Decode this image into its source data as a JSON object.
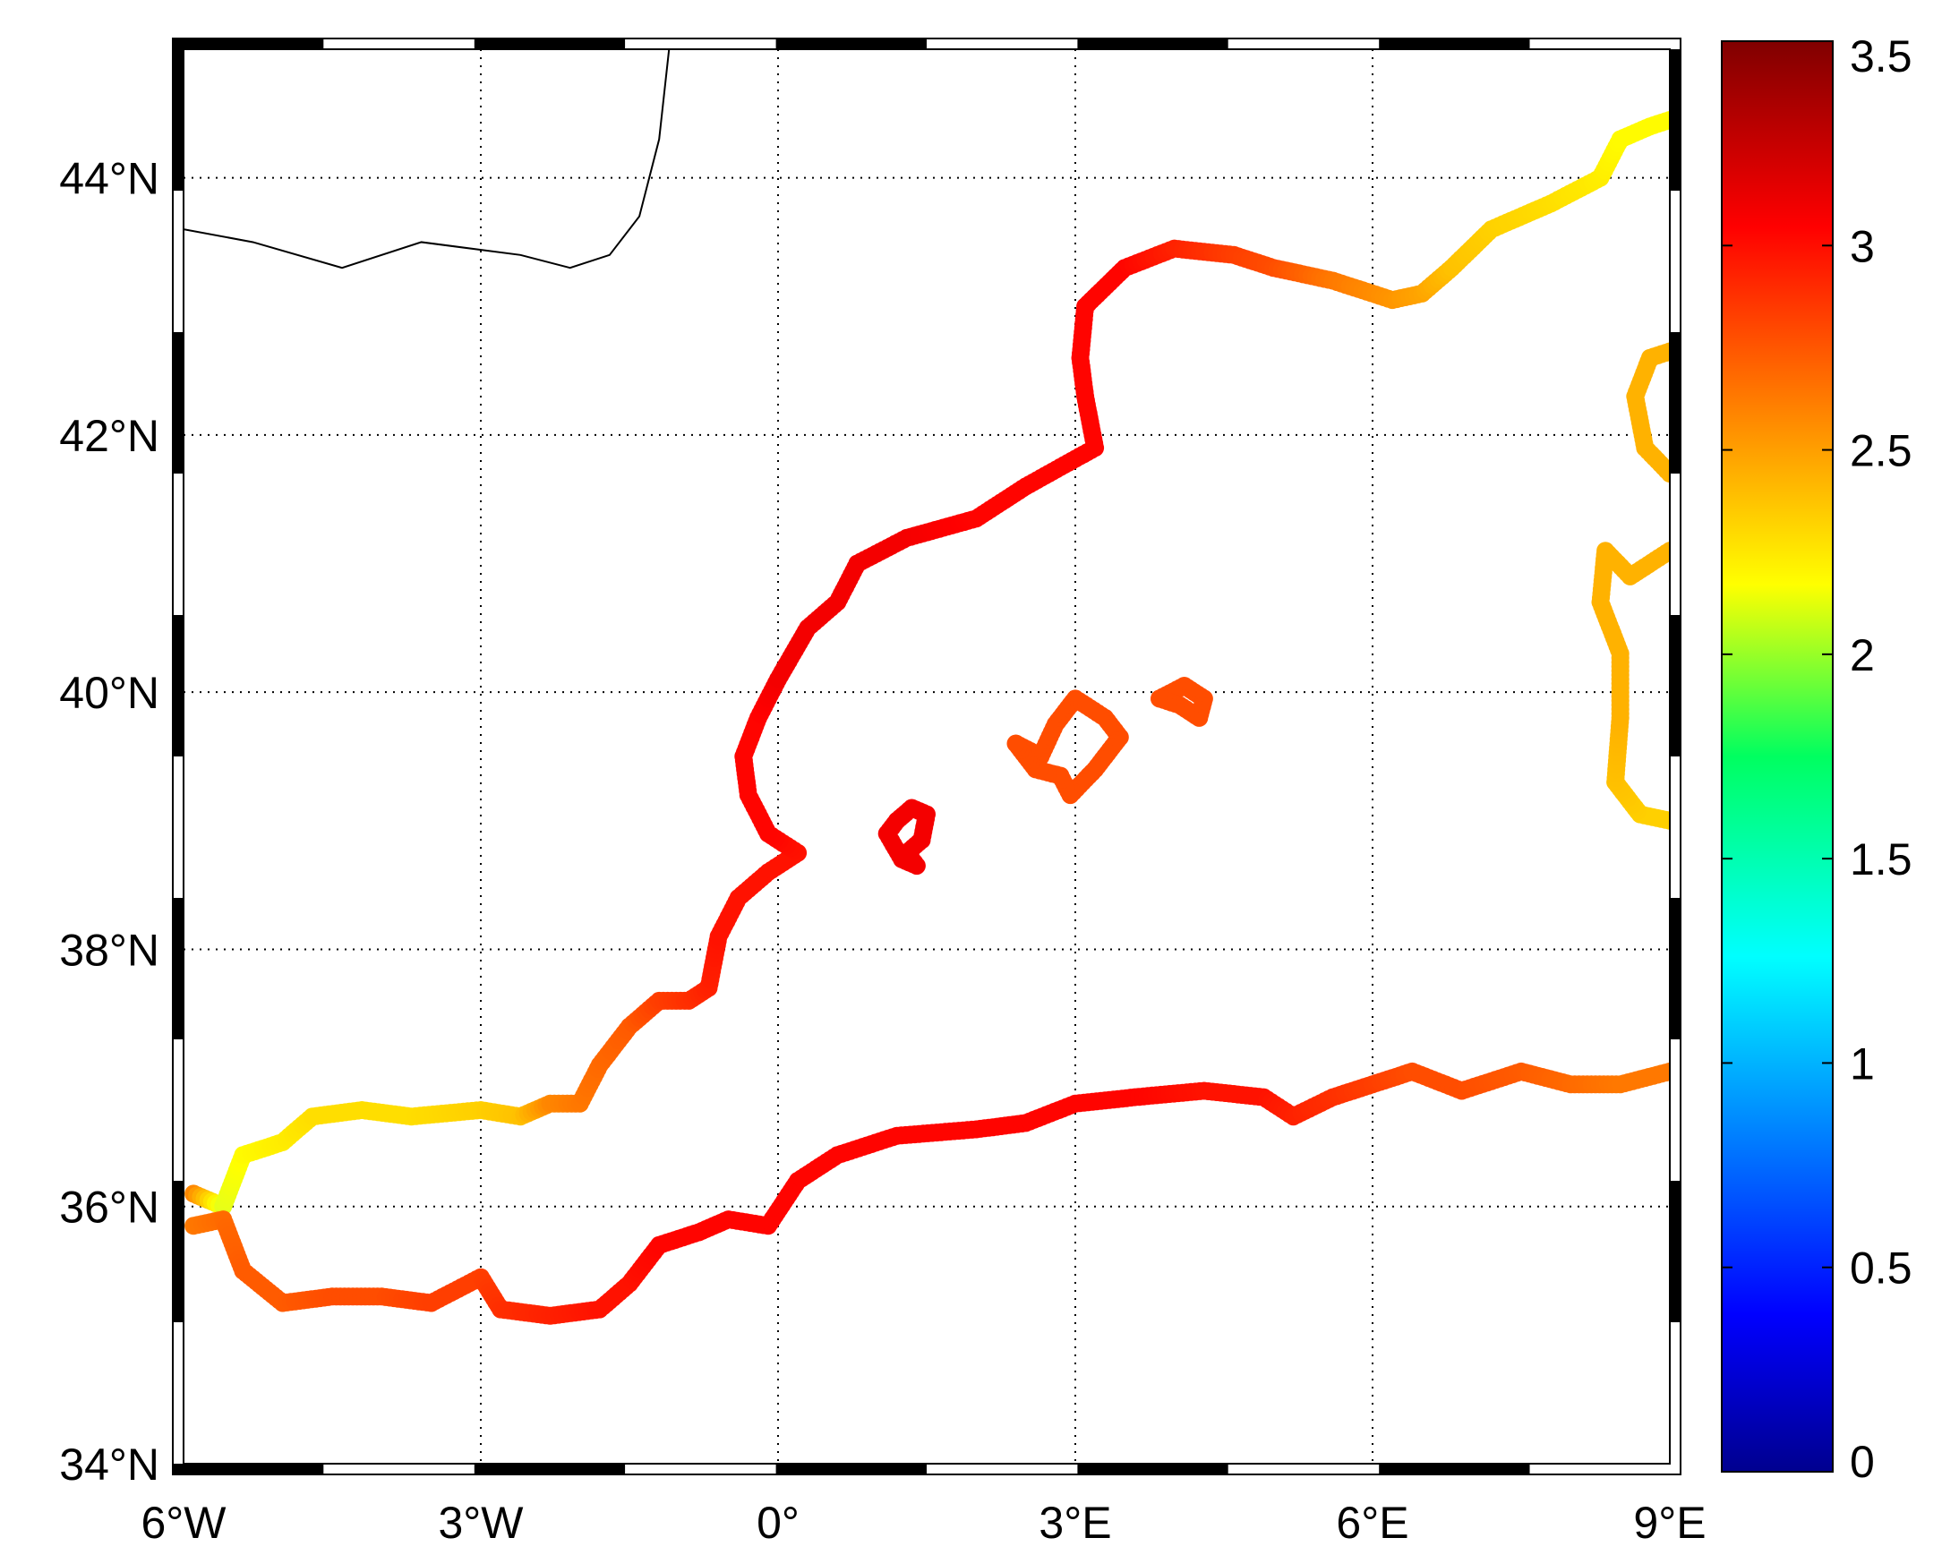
{
  "map": {
    "lon_range": [
      -6,
      9
    ],
    "lat_range": [
      34,
      45
    ],
    "grid": "dotted",
    "frame": "black-white-dashed",
    "lon_ticks": [
      {
        "value": -6,
        "label": "6°W"
      },
      {
        "value": -3,
        "label": "3°W"
      },
      {
        "value": 0,
        "label": "0°"
      },
      {
        "value": 3,
        "label": "3°E"
      },
      {
        "value": 6,
        "label": "6°E"
      },
      {
        "value": 9,
        "label": "9°E"
      }
    ],
    "lat_ticks": [
      {
        "value": 34,
        "label": "34°N"
      },
      {
        "value": 36,
        "label": "36°N"
      },
      {
        "value": 38,
        "label": "38°N"
      },
      {
        "value": 40,
        "label": "40°N"
      },
      {
        "value": 42,
        "label": "42°N"
      },
      {
        "value": 44,
        "label": "44°N"
      }
    ],
    "border_line": [
      [
        -6,
        43.6
      ],
      [
        -5.3,
        43.5
      ],
      [
        -4.4,
        43.3
      ],
      [
        -3.6,
        43.5
      ],
      [
        -2.6,
        43.4
      ],
      [
        -2.1,
        43.3
      ],
      [
        -1.7,
        43.4
      ],
      [
        -1.4,
        43.7
      ],
      [
        -1.2,
        44.3
      ],
      [
        -1.1,
        45
      ]
    ],
    "coast_segments": [
      {
        "name": "iberia-coast",
        "points": [
          [
            -5.9,
            36.1,
            2.6
          ],
          [
            -5.6,
            36.0,
            2.1
          ],
          [
            -5.4,
            36.4,
            2.2
          ],
          [
            -5.0,
            36.5,
            2.25
          ],
          [
            -4.7,
            36.7,
            2.3
          ],
          [
            -4.2,
            36.75,
            2.3
          ],
          [
            -3.7,
            36.7,
            2.3
          ],
          [
            -3.0,
            36.75,
            2.35
          ],
          [
            -2.6,
            36.7,
            2.4
          ],
          [
            -2.3,
            36.8,
            2.6
          ],
          [
            -2.0,
            36.8,
            2.65
          ],
          [
            -1.8,
            37.1,
            2.7
          ],
          [
            -1.5,
            37.4,
            2.75
          ],
          [
            -1.2,
            37.6,
            2.85
          ],
          [
            -0.9,
            37.6,
            2.9
          ],
          [
            -0.7,
            37.7,
            2.95
          ],
          [
            -0.6,
            38.1,
            3.0
          ],
          [
            -0.4,
            38.4,
            3.0
          ],
          [
            -0.1,
            38.6,
            3.0
          ],
          [
            0.2,
            38.75,
            3.0
          ],
          [
            -0.1,
            38.9,
            3.05
          ],
          [
            -0.3,
            39.2,
            3.05
          ],
          [
            -0.35,
            39.5,
            3.05
          ],
          [
            -0.2,
            39.8,
            3.05
          ],
          [
            0.0,
            40.1,
            3.1
          ],
          [
            0.3,
            40.5,
            3.1
          ],
          [
            0.6,
            40.7,
            3.1
          ],
          [
            0.8,
            41.0,
            3.1
          ],
          [
            1.3,
            41.2,
            3.1
          ],
          [
            2.0,
            41.35,
            3.05
          ],
          [
            2.5,
            41.6,
            3.05
          ],
          [
            3.2,
            41.9,
            3.05
          ],
          [
            3.1,
            42.3,
            3.05
          ],
          [
            3.05,
            42.6,
            3.05
          ],
          [
            3.1,
            43.0,
            3.05
          ],
          [
            3.5,
            43.3,
            3.05
          ],
          [
            4.0,
            43.45,
            2.95
          ],
          [
            4.6,
            43.4,
            2.85
          ],
          [
            5.0,
            43.3,
            2.8
          ],
          [
            5.6,
            43.2,
            2.65
          ],
          [
            6.2,
            43.05,
            2.55
          ],
          [
            6.5,
            43.1,
            2.5
          ],
          [
            6.8,
            43.3,
            2.4
          ],
          [
            7.2,
            43.6,
            2.35
          ],
          [
            7.8,
            43.8,
            2.3
          ],
          [
            8.3,
            44.0,
            2.25
          ],
          [
            8.5,
            44.3,
            2.2
          ],
          [
            8.8,
            44.4,
            2.2
          ],
          [
            9.0,
            44.45,
            2.2
          ]
        ]
      },
      {
        "name": "africa-coast",
        "points": [
          [
            -5.9,
            35.85,
            2.65
          ],
          [
            -5.6,
            35.9,
            2.7
          ],
          [
            -5.4,
            35.5,
            2.75
          ],
          [
            -5.0,
            35.25,
            2.75
          ],
          [
            -4.5,
            35.3,
            2.8
          ],
          [
            -4.0,
            35.3,
            2.8
          ],
          [
            -3.5,
            35.25,
            2.85
          ],
          [
            -3.0,
            35.45,
            2.85
          ],
          [
            -2.8,
            35.2,
            2.9
          ],
          [
            -2.3,
            35.15,
            2.95
          ],
          [
            -1.8,
            35.2,
            3.0
          ],
          [
            -1.5,
            35.4,
            3.0
          ],
          [
            -1.2,
            35.7,
            3.05
          ],
          [
            -0.8,
            35.8,
            3.05
          ],
          [
            -0.5,
            35.9,
            3.05
          ],
          [
            -0.1,
            35.85,
            3.05
          ],
          [
            0.2,
            36.2,
            3.05
          ],
          [
            0.6,
            36.4,
            3.05
          ],
          [
            1.2,
            36.55,
            3.05
          ],
          [
            2.0,
            36.6,
            3.05
          ],
          [
            2.5,
            36.65,
            3.05
          ],
          [
            3.0,
            36.8,
            3.05
          ],
          [
            3.6,
            36.85,
            3.05
          ],
          [
            4.3,
            36.9,
            3.0
          ],
          [
            4.9,
            36.85,
            3.0
          ],
          [
            5.2,
            36.7,
            2.95
          ],
          [
            5.6,
            36.85,
            2.9
          ],
          [
            6.0,
            36.95,
            2.85
          ],
          [
            6.4,
            37.05,
            2.8
          ],
          [
            6.9,
            36.9,
            2.8
          ],
          [
            7.5,
            37.05,
            2.75
          ],
          [
            8.0,
            36.95,
            2.7
          ],
          [
            8.5,
            36.95,
            2.65
          ],
          [
            9.0,
            37.05,
            2.65
          ]
        ]
      },
      {
        "name": "sardinia-coast",
        "points": [
          [
            9.0,
            39.0,
            2.35
          ],
          [
            8.7,
            39.05,
            2.35
          ],
          [
            8.45,
            39.3,
            2.4
          ],
          [
            8.5,
            39.8,
            2.45
          ],
          [
            8.5,
            40.3,
            2.45
          ],
          [
            8.3,
            40.7,
            2.45
          ],
          [
            8.35,
            41.1,
            2.45
          ],
          [
            8.6,
            40.9,
            2.45
          ],
          [
            9.0,
            41.1,
            2.45
          ]
        ]
      },
      {
        "name": "corsica-coast",
        "points": [
          [
            9.0,
            41.7,
            2.45
          ],
          [
            8.75,
            41.9,
            2.45
          ],
          [
            8.65,
            42.3,
            2.45
          ],
          [
            8.8,
            42.6,
            2.45
          ],
          [
            9.0,
            42.65,
            2.45
          ]
        ]
      },
      {
        "name": "ibiza-coast",
        "points": [
          [
            1.2,
            39.0,
            3.1
          ],
          [
            1.35,
            39.1,
            3.1
          ],
          [
            1.5,
            39.05,
            3.1
          ],
          [
            1.45,
            38.85,
            3.1
          ],
          [
            1.3,
            38.75,
            3.1
          ],
          [
            1.4,
            38.65,
            3.1
          ],
          [
            1.25,
            38.7,
            3.1
          ],
          [
            1.1,
            38.9,
            3.1
          ],
          [
            1.2,
            39.0,
            3.1
          ]
        ]
      },
      {
        "name": "mallorca-coast",
        "points": [
          [
            2.4,
            39.6,
            2.8
          ],
          [
            2.65,
            39.5,
            2.8
          ],
          [
            2.8,
            39.75,
            2.8
          ],
          [
            3.0,
            39.95,
            2.8
          ],
          [
            3.3,
            39.8,
            2.8
          ],
          [
            3.45,
            39.65,
            2.8
          ],
          [
            3.2,
            39.4,
            2.8
          ],
          [
            2.95,
            39.2,
            2.8
          ],
          [
            2.85,
            39.35,
            2.8
          ],
          [
            2.6,
            39.4,
            2.8
          ],
          [
            2.4,
            39.6,
            2.8
          ]
        ]
      },
      {
        "name": "menorca-coast",
        "points": [
          [
            3.85,
            39.95,
            2.8
          ],
          [
            4.1,
            40.05,
            2.8
          ],
          [
            4.3,
            39.95,
            2.8
          ],
          [
            4.25,
            39.8,
            2.8
          ],
          [
            4.05,
            39.9,
            2.8
          ],
          [
            3.85,
            39.95,
            2.8
          ]
        ]
      }
    ]
  },
  "colorbar": {
    "min": 0,
    "max": 3.5,
    "colormap": "jet",
    "ticks": [
      {
        "value": 0,
        "label": "0"
      },
      {
        "value": 0.5,
        "label": "0.5"
      },
      {
        "value": 1,
        "label": "1"
      },
      {
        "value": 1.5,
        "label": "1.5"
      },
      {
        "value": 2,
        "label": "2"
      },
      {
        "value": 2.5,
        "label": "2.5"
      },
      {
        "value": 3,
        "label": "3"
      },
      {
        "value": 3.5,
        "label": "3.5"
      }
    ]
  }
}
